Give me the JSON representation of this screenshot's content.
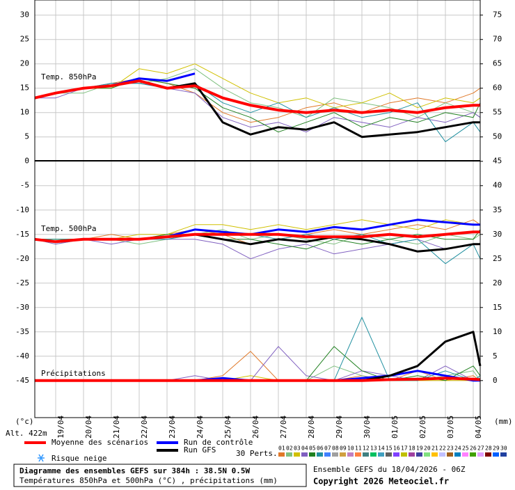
{
  "chart_data": {
    "type": "line",
    "title": "Diagramme des ensembles GEFS sur 384h : 38.5N 0.5W",
    "subtitle": "Températures 850hPa et 500hPa (°C) , précipitations (mm)",
    "run_label": "Ensemble GEFS du 18/04/2026 - 06Z",
    "copyright": "Copyright 2026 Meteociel.fr",
    "y_unit": "(°c)",
    "y2_unit": "(mm)",
    "altitude": "Alt. 422m",
    "panel_labels": [
      "Temp. 850hPa",
      "Temp. 500hPa",
      "Précipitations"
    ],
    "snow_label": "Risque neige",
    "perts_label": "30 Perts.",
    "x": [
      0,
      18,
      42,
      66,
      90,
      114,
      138,
      162,
      186,
      210,
      234,
      258,
      282,
      306,
      330,
      354,
      378,
      384
    ],
    "xlim": [
      0,
      384
    ],
    "xticks": [
      {
        "value": 18,
        "label": "19/04"
      },
      {
        "value": 42,
        "label": "20/04"
      },
      {
        "value": 66,
        "label": "21/04"
      },
      {
        "value": 90,
        "label": "22/04"
      },
      {
        "value": 114,
        "label": "23/04"
      },
      {
        "value": 138,
        "label": "24/04"
      },
      {
        "value": 162,
        "label": "25/04"
      },
      {
        "value": 186,
        "label": "26/04"
      },
      {
        "value": 210,
        "label": "27/04"
      },
      {
        "value": 234,
        "label": "28/04"
      },
      {
        "value": 258,
        "label": "29/04"
      },
      {
        "value": 282,
        "label": "30/04"
      },
      {
        "value": 306,
        "label": "01/05"
      },
      {
        "value": 330,
        "label": "02/05"
      },
      {
        "value": 354,
        "label": "03/05"
      },
      {
        "value": 378,
        "label": "04/05"
      }
    ],
    "ylim": [
      -52.6,
      33.1
    ],
    "yticks": [
      30,
      25,
      20,
      15,
      10,
      5,
      0,
      -5,
      -10,
      -15,
      -20,
      -25,
      -30,
      -35,
      -40,
      -45
    ],
    "y2lim": [
      -7.6,
      78.1
    ],
    "y2ticks": [
      75,
      70,
      65,
      60,
      55,
      50,
      45,
      40,
      35,
      30,
      25,
      20,
      15,
      10,
      5,
      0
    ],
    "grid": true,
    "runs": [
      {
        "name": "Moyenne des scénarios",
        "color": "#ff0000",
        "t850": [
          13,
          14,
          15,
          15.5,
          16.5,
          15,
          15.5,
          13,
          11.5,
          10.5,
          10,
          10.5,
          10,
          10.5,
          10,
          11,
          11.5,
          11.5
        ],
        "t500": [
          -16,
          -16.5,
          -16,
          -16,
          -16,
          -15.5,
          -15,
          -15,
          -15,
          -15,
          -15.5,
          -15.5,
          -15.5,
          -15,
          -15.5,
          -15,
          -14.5,
          -14.5
        ],
        "precip": [
          0,
          0,
          0,
          0,
          0,
          0,
          0,
          0,
          0,
          0,
          0,
          0,
          0,
          0.2,
          0.3,
          0.5,
          0.3,
          0.2
        ]
      },
      {
        "name": "Run de contrôle",
        "color": "#0000ff",
        "t850": [
          13,
          14,
          15,
          15.5,
          17,
          16.5,
          18,
          null,
          null,
          null,
          null,
          null,
          null,
          null,
          null,
          null,
          null,
          null
        ],
        "t500": [
          -16,
          -16.5,
          -16,
          -16,
          -16,
          -15.5,
          -14,
          -14.5,
          -15,
          -14,
          -14.5,
          -13.5,
          -14,
          -13,
          -12,
          -12.5,
          -13,
          -13
        ],
        "precip": [
          0,
          0,
          0,
          0,
          0,
          0,
          0,
          0.5,
          0,
          0,
          0,
          0,
          0.5,
          1,
          2,
          1,
          0,
          0
        ]
      },
      {
        "name": "Run GFS",
        "color": "#000000",
        "t850": [
          13,
          14,
          15,
          15.5,
          16.5,
          15,
          16,
          8,
          5.5,
          7,
          6.5,
          8,
          5,
          5.5,
          6,
          7,
          8,
          8
        ],
        "t500": [
          -16,
          -16.5,
          -16,
          -16,
          -16,
          -15.5,
          -15,
          -16,
          -17,
          -16,
          -16.5,
          -15.5,
          -16,
          -17,
          -18.5,
          -18,
          -17,
          -17
        ],
        "precip": [
          0,
          0,
          0,
          0,
          0,
          0,
          0,
          0,
          0,
          0,
          0,
          0,
          0,
          1,
          3,
          8,
          10,
          3
        ]
      }
    ],
    "members": [
      {
        "name": "01",
        "color": "#e07828",
        "t850": [
          13,
          14,
          15,
          16,
          17,
          16,
          14,
          10,
          8,
          9,
          11,
          12,
          10,
          12,
          13,
          12,
          14,
          15
        ],
        "t500": [
          -16,
          -16,
          -16,
          -15,
          -16,
          -15,
          -14,
          -15,
          -17,
          -16,
          -15,
          -14,
          -15,
          -14,
          -13,
          -14,
          -12,
          -13
        ],
        "precip": [
          0,
          0,
          0,
          0,
          0,
          0,
          0,
          1,
          6,
          0,
          0,
          0,
          1,
          0,
          2,
          0,
          1,
          0
        ]
      },
      {
        "name": "02",
        "color": "#80c080",
        "t850": [
          13,
          14,
          14,
          16,
          16,
          17,
          19,
          15,
          12,
          11,
          9,
          13,
          12,
          11,
          9,
          12,
          10,
          9
        ],
        "t500": [
          -16,
          -17,
          -16,
          -16,
          -17,
          -16,
          -15,
          -14,
          -16,
          -15,
          -16,
          -17,
          -15,
          -16,
          -17,
          -15,
          -16,
          -15
        ],
        "precip": [
          0,
          0,
          0,
          0,
          0,
          0,
          0,
          0,
          0,
          0,
          0,
          3,
          1,
          0,
          0,
          1,
          2,
          0
        ]
      },
      {
        "name": "03",
        "color": "#d0c000",
        "t850": [
          13,
          14,
          15,
          15,
          19,
          18,
          20,
          17,
          14,
          12,
          13,
          11,
          12,
          14,
          11,
          13,
          12,
          13
        ],
        "t500": [
          -16,
          -16,
          -16,
          -16,
          -15,
          -15,
          -13,
          -13,
          -14,
          -13,
          -14,
          -13,
          -12,
          -13,
          -14,
          -12,
          -13,
          -13
        ],
        "precip": [
          0,
          0,
          0,
          0,
          0,
          0,
          0,
          0,
          1,
          0,
          0,
          0,
          0,
          0,
          0,
          0,
          0,
          0
        ]
      },
      {
        "name": "04",
        "color": "#8060c0",
        "t850": [
          13,
          13,
          15,
          16,
          16,
          15,
          14,
          9,
          7,
          8,
          6,
          9,
          8,
          7,
          9,
          8,
          10,
          9
        ],
        "t500": [
          -16,
          -17,
          -16,
          -17,
          -16,
          -16,
          -16,
          -17,
          -20,
          -18,
          -17,
          -19,
          -18,
          -17,
          -16,
          -18,
          -17,
          -17
        ],
        "precip": [
          0,
          0,
          0,
          0,
          0,
          0,
          1,
          0,
          0,
          7,
          1,
          0,
          2,
          1,
          0,
          3,
          0,
          0
        ]
      },
      {
        "name": "05",
        "color": "#208020",
        "t850": [
          13,
          14,
          15,
          15,
          17,
          16,
          15,
          11,
          9,
          6,
          8,
          10,
          7,
          9,
          8,
          10,
          9,
          12
        ],
        "t500": [
          -16,
          -16,
          -16,
          -16,
          -16,
          -15,
          -15,
          -16,
          -16,
          -17,
          -18,
          -16,
          -17,
          -16,
          -15,
          -16,
          -16,
          -14
        ],
        "precip": [
          0,
          0,
          0,
          0,
          0,
          0,
          0,
          0,
          0,
          0,
          0,
          7,
          2,
          0,
          1,
          0,
          3,
          1
        ]
      },
      {
        "name": "06",
        "color": "#2090a0",
        "t850": [
          13,
          14,
          15,
          16,
          16,
          15,
          16,
          12,
          10,
          12,
          9,
          11,
          9,
          10,
          12,
          4,
          8,
          6
        ],
        "t500": [
          -16,
          -16,
          -16,
          -16,
          -16,
          -16,
          -15,
          -15,
          -15,
          -16,
          -15,
          -16,
          -15,
          -17,
          -16,
          -21,
          -17,
          -20
        ],
        "precip": [
          0,
          0,
          0,
          0,
          0,
          0,
          0,
          0,
          0,
          0,
          0,
          0,
          13,
          0,
          0,
          2,
          0,
          1
        ]
      },
      {
        "name": "07",
        "color": "#4080ff"
      },
      {
        "name": "08",
        "color": "#a0a0a0"
      },
      {
        "name": "09",
        "color": "#d0a040"
      },
      {
        "name": "10",
        "color": "#c080c0"
      },
      {
        "name": "11",
        "color": "#ff8040"
      },
      {
        "name": "12",
        "color": "#408080"
      },
      {
        "name": "13",
        "color": "#00c060"
      },
      {
        "name": "14",
        "color": "#40a0c0"
      },
      {
        "name": "15",
        "color": "#606060"
      },
      {
        "name": "16",
        "color": "#8040ff"
      },
      {
        "name": "17",
        "color": "#c0c000"
      },
      {
        "name": "18",
        "color": "#a040a0"
      },
      {
        "name": "19",
        "color": "#4040a0"
      },
      {
        "name": "20",
        "color": "#80e080"
      },
      {
        "name": "21",
        "color": "#ffc000"
      },
      {
        "name": "22",
        "color": "#c0c0ff"
      },
      {
        "name": "23",
        "color": "#a06020"
      },
      {
        "name": "24",
        "color": "#0080c0"
      },
      {
        "name": "25",
        "color": "#ff80ff"
      },
      {
        "name": "26",
        "color": "#40a000"
      },
      {
        "name": "27",
        "color": "#e0a0ff"
      },
      {
        "name": "28",
        "color": "#800000"
      },
      {
        "name": "29",
        "color": "#0060ff"
      },
      {
        "name": "30",
        "color": "#2040a0"
      }
    ]
  }
}
